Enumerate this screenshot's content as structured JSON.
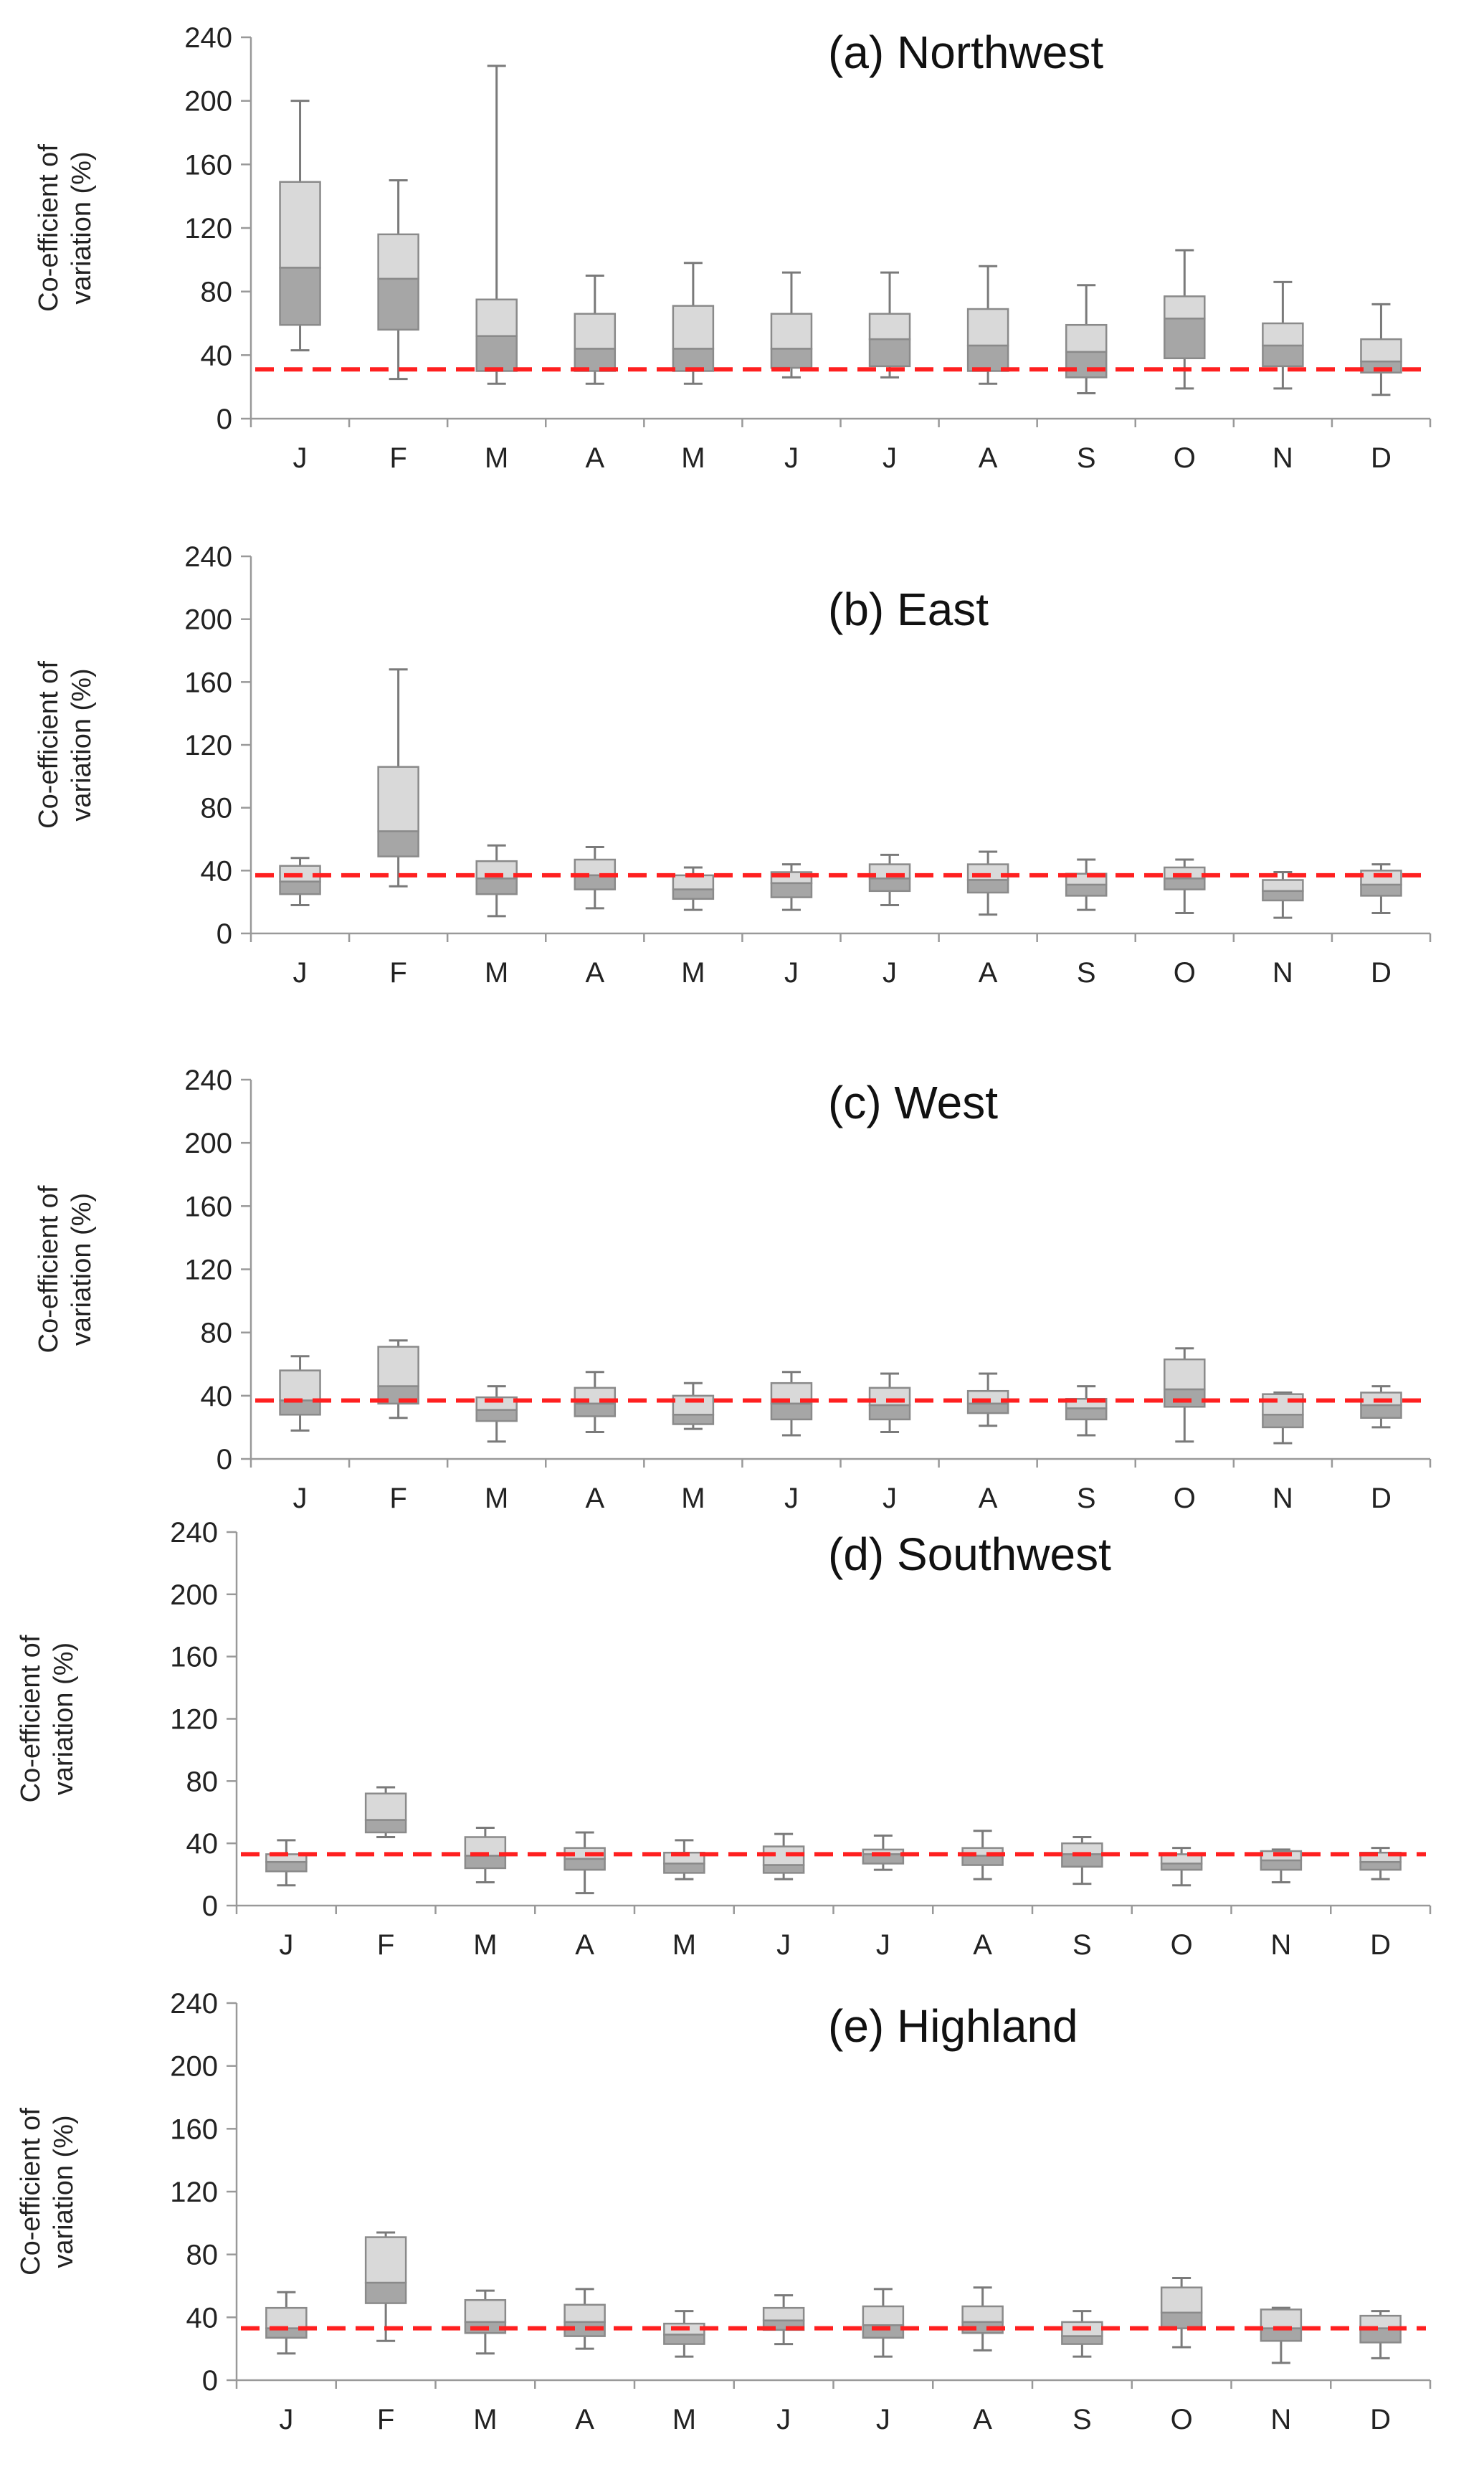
{
  "chart_data": [
    {
      "type": "box",
      "title": "(a) Northwest",
      "ylabel": "Co-efficient of variation (%)",
      "ylim": [
        0,
        240
      ],
      "yticks": [
        0,
        40,
        80,
        120,
        160,
        200,
        240
      ],
      "categories": [
        "J",
        "F",
        "M",
        "A",
        "M",
        "J",
        "J",
        "A",
        "S",
        "O",
        "N",
        "D"
      ],
      "reference_line": 31,
      "boxes": [
        {
          "min": 43,
          "q1": 59,
          "median": 95,
          "q3": 149,
          "max": 200
        },
        {
          "min": 25,
          "q1": 56,
          "median": 88,
          "q3": 116,
          "max": 150
        },
        {
          "min": 22,
          "q1": 30,
          "median": 52,
          "q3": 75,
          "max": 222
        },
        {
          "min": 22,
          "q1": 30,
          "median": 44,
          "q3": 66,
          "max": 90
        },
        {
          "min": 22,
          "q1": 30,
          "median": 44,
          "q3": 71,
          "max": 98
        },
        {
          "min": 26,
          "q1": 32,
          "median": 44,
          "q3": 66,
          "max": 92
        },
        {
          "min": 26,
          "q1": 33,
          "median": 50,
          "q3": 66,
          "max": 92
        },
        {
          "min": 22,
          "q1": 30,
          "median": 46,
          "q3": 69,
          "max": 96
        },
        {
          "min": 16,
          "q1": 26,
          "median": 42,
          "q3": 59,
          "max": 84
        },
        {
          "min": 19,
          "q1": 38,
          "median": 63,
          "q3": 77,
          "max": 106
        },
        {
          "min": 19,
          "q1": 33,
          "median": 46,
          "q3": 60,
          "max": 86
        },
        {
          "min": 15,
          "q1": 29,
          "median": 36,
          "q3": 50,
          "max": 72
        }
      ]
    },
    {
      "type": "box",
      "title": "(b) East",
      "ylabel": "Co-efficient of variation (%)",
      "ylim": [
        0,
        240
      ],
      "yticks": [
        0,
        40,
        80,
        120,
        160,
        200,
        240
      ],
      "categories": [
        "J",
        "F",
        "M",
        "A",
        "M",
        "J",
        "J",
        "A",
        "S",
        "O",
        "N",
        "D"
      ],
      "reference_line": 37,
      "boxes": [
        {
          "min": 18,
          "q1": 25,
          "median": 33,
          "q3": 43,
          "max": 48
        },
        {
          "min": 30,
          "q1": 49,
          "median": 65,
          "q3": 106,
          "max": 168
        },
        {
          "min": 11,
          "q1": 25,
          "median": 35,
          "q3": 46,
          "max": 56
        },
        {
          "min": 16,
          "q1": 28,
          "median": 37,
          "q3": 47,
          "max": 55
        },
        {
          "min": 15,
          "q1": 22,
          "median": 28,
          "q3": 37,
          "max": 42
        },
        {
          "min": 15,
          "q1": 23,
          "median": 32,
          "q3": 39,
          "max": 44
        },
        {
          "min": 18,
          "q1": 27,
          "median": 35,
          "q3": 44,
          "max": 50
        },
        {
          "min": 12,
          "q1": 26,
          "median": 34,
          "q3": 44,
          "max": 52
        },
        {
          "min": 15,
          "q1": 24,
          "median": 31,
          "q3": 38,
          "max": 47
        },
        {
          "min": 13,
          "q1": 28,
          "median": 35,
          "q3": 42,
          "max": 47
        },
        {
          "min": 10,
          "q1": 21,
          "median": 27,
          "q3": 34,
          "max": 39
        },
        {
          "min": 13,
          "q1": 24,
          "median": 31,
          "q3": 40,
          "max": 44
        }
      ]
    },
    {
      "type": "box",
      "title": "(c) West",
      "ylabel": "Co-efficient of variation (%)",
      "ylim": [
        0,
        240
      ],
      "yticks": [
        0,
        40,
        80,
        120,
        160,
        200,
        240
      ],
      "categories": [
        "J",
        "F",
        "M",
        "A",
        "M",
        "J",
        "J",
        "A",
        "S",
        "O",
        "N",
        "D"
      ],
      "reference_line": 37,
      "boxes": [
        {
          "min": 18,
          "q1": 28,
          "median": 37,
          "q3": 56,
          "max": 65
        },
        {
          "min": 26,
          "q1": 35,
          "median": 46,
          "q3": 71,
          "max": 75
        },
        {
          "min": 11,
          "q1": 24,
          "median": 31,
          "q3": 39,
          "max": 46
        },
        {
          "min": 17,
          "q1": 27,
          "median": 35,
          "q3": 45,
          "max": 55
        },
        {
          "min": 19,
          "q1": 22,
          "median": 28,
          "q3": 40,
          "max": 48
        },
        {
          "min": 15,
          "q1": 25,
          "median": 35,
          "q3": 48,
          "max": 55
        },
        {
          "min": 17,
          "q1": 25,
          "median": 34,
          "q3": 45,
          "max": 54
        },
        {
          "min": 21,
          "q1": 29,
          "median": 35,
          "q3": 43,
          "max": 54
        },
        {
          "min": 15,
          "q1": 25,
          "median": 32,
          "q3": 38,
          "max": 46
        },
        {
          "min": 11,
          "q1": 33,
          "median": 44,
          "q3": 63,
          "max": 70
        },
        {
          "min": 10,
          "q1": 20,
          "median": 28,
          "q3": 41,
          "max": 42
        },
        {
          "min": 20,
          "q1": 26,
          "median": 34,
          "q3": 42,
          "max": 46
        }
      ]
    },
    {
      "type": "box",
      "title": "(d) Southwest",
      "ylabel": "Co-efficient of variation (%)",
      "ylim": [
        0,
        240
      ],
      "yticks": [
        0,
        40,
        80,
        120,
        160,
        200,
        240
      ],
      "categories": [
        "J",
        "F",
        "M",
        "A",
        "M",
        "J",
        "J",
        "A",
        "S",
        "O",
        "N",
        "D"
      ],
      "reference_line": 33,
      "boxes": [
        {
          "min": 13,
          "q1": 22,
          "median": 28,
          "q3": 33,
          "max": 42
        },
        {
          "min": 44,
          "q1": 47,
          "median": 55,
          "q3": 72,
          "max": 76
        },
        {
          "min": 15,
          "q1": 24,
          "median": 32,
          "q3": 44,
          "max": 50
        },
        {
          "min": 8,
          "q1": 23,
          "median": 30,
          "q3": 37,
          "max": 47
        },
        {
          "min": 17,
          "q1": 21,
          "median": 27,
          "q3": 34,
          "max": 42
        },
        {
          "min": 17,
          "q1": 21,
          "median": 26,
          "q3": 38,
          "max": 46
        },
        {
          "min": 23,
          "q1": 27,
          "median": 33,
          "q3": 36,
          "max": 45
        },
        {
          "min": 17,
          "q1": 26,
          "median": 32,
          "q3": 37,
          "max": 48
        },
        {
          "min": 14,
          "q1": 25,
          "median": 33,
          "q3": 40,
          "max": 44
        },
        {
          "min": 13,
          "q1": 23,
          "median": 27,
          "q3": 33,
          "max": 37
        },
        {
          "min": 15,
          "q1": 23,
          "median": 29,
          "q3": 35,
          "max": 36
        },
        {
          "min": 17,
          "q1": 23,
          "median": 28,
          "q3": 34,
          "max": 37
        }
      ]
    },
    {
      "type": "box",
      "title": "(e) Highland",
      "ylabel": "Co-efficient of variation (%)",
      "ylim": [
        0,
        240
      ],
      "yticks": [
        0,
        40,
        80,
        120,
        160,
        200,
        240
      ],
      "categories": [
        "J",
        "F",
        "M",
        "A",
        "M",
        "J",
        "J",
        "A",
        "S",
        "O",
        "N",
        "D"
      ],
      "reference_line": 33,
      "boxes": [
        {
          "min": 17,
          "q1": 27,
          "median": 33,
          "q3": 46,
          "max": 56
        },
        {
          "min": 25,
          "q1": 49,
          "median": 62,
          "q3": 91,
          "max": 94
        },
        {
          "min": 17,
          "q1": 30,
          "median": 37,
          "q3": 51,
          "max": 57
        },
        {
          "min": 20,
          "q1": 28,
          "median": 37,
          "q3": 48,
          "max": 58
        },
        {
          "min": 15,
          "q1": 23,
          "median": 29,
          "q3": 36,
          "max": 44
        },
        {
          "min": 23,
          "q1": 32,
          "median": 38,
          "q3": 46,
          "max": 54
        },
        {
          "min": 15,
          "q1": 27,
          "median": 35,
          "q3": 47,
          "max": 58
        },
        {
          "min": 19,
          "q1": 30,
          "median": 37,
          "q3": 47,
          "max": 59
        },
        {
          "min": 15,
          "q1": 23,
          "median": 28,
          "q3": 37,
          "max": 44
        },
        {
          "min": 21,
          "q1": 33,
          "median": 43,
          "q3": 59,
          "max": 65
        },
        {
          "min": 11,
          "q1": 25,
          "median": 33,
          "q3": 45,
          "max": 46
        },
        {
          "min": 14,
          "q1": 24,
          "median": 33,
          "q3": 41,
          "max": 44
        }
      ]
    }
  ]
}
